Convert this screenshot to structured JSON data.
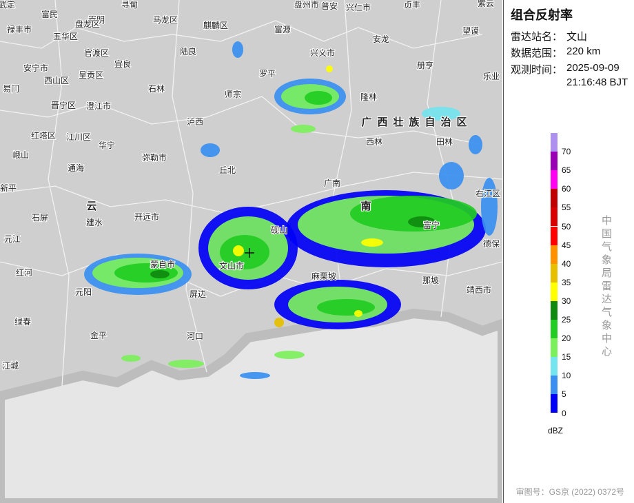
{
  "panel": {
    "title": "组合反射率",
    "station_label": "雷达站名：",
    "station": "文山",
    "range_label": "数据范围：",
    "range": "220 km",
    "time_label": "观测时间：",
    "date": "2025-09-09",
    "time": "21:16:48 BJT"
  },
  "legend": {
    "unit": "dBZ",
    "items": [
      {
        "value": 0,
        "color": "#0000f6"
      },
      {
        "value": 5,
        "color": "#3a8ff0"
      },
      {
        "value": 10,
        "color": "#74e4ee"
      },
      {
        "value": 15,
        "color": "#7cf05c"
      },
      {
        "value": 20,
        "color": "#22cc22"
      },
      {
        "value": 25,
        "color": "#0f8a0f"
      },
      {
        "value": 30,
        "color": "#ffff00"
      },
      {
        "value": 35,
        "color": "#e6c000"
      },
      {
        "value": 40,
        "color": "#ff9000"
      },
      {
        "value": 45,
        "color": "#ff0000"
      },
      {
        "value": 50,
        "color": "#d80000"
      },
      {
        "value": 55,
        "color": "#c00000"
      },
      {
        "value": 60,
        "color": "#ff00f0"
      },
      {
        "value": 65,
        "color": "#9a00b4"
      },
      {
        "value": 70,
        "color": "#ae90f0"
      }
    ]
  },
  "credit": "中国气象局雷达气象中心",
  "approval": "审图号：GS京 (2022) 0372号",
  "map": {
    "labels": [
      "武定",
      "富民",
      "嵩明",
      "寻甸",
      "马龙区",
      "麒麟区",
      "富源",
      "盘州市",
      "普安",
      "兴仁市",
      "贞丰",
      "紫云",
      "禄丰市",
      "五华区",
      "盘龙区",
      "官渡区",
      "宜良",
      "陆良",
      "罗平",
      "兴义市",
      "安龙",
      "望谟",
      "安宁市",
      "西山区",
      "呈贡区",
      "石林",
      "师宗",
      "隆林",
      "册亨",
      "乐业",
      "易门",
      "晋宁区",
      "澄江市",
      "泸西",
      "广西壮族自治区",
      "西林",
      "田林",
      "红塔区",
      "江川区",
      "华宁",
      "弥勒市",
      "峨山",
      "通海",
      "丘北",
      "广南",
      "新平",
      "云",
      "南",
      "建水",
      "开远市",
      "石屏",
      "砚山",
      "富宁",
      "元江",
      "德保",
      "蒙自市",
      "文山市",
      "红河",
      "元阳",
      "屏边",
      "麻栗坡",
      "那坡",
      "靖西市",
      "绿春",
      "金平",
      "河口",
      "江城",
      "右江区"
    ]
  }
}
